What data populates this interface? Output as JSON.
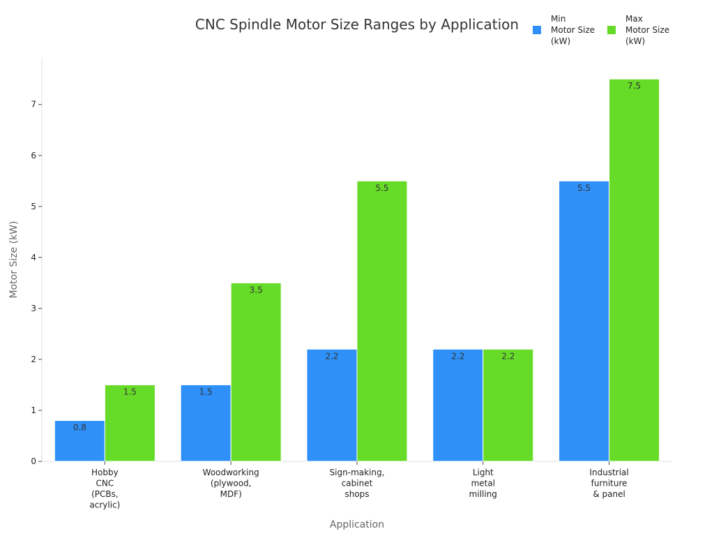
{
  "chart_data": {
    "type": "bar",
    "title": "CNC Spindle Motor Size Ranges by Application",
    "xlabel": "Application",
    "ylabel": "Motor Size (kW)",
    "categories": [
      [
        "Hobby",
        "CNC",
        "(PCBs,",
        "acrylic)"
      ],
      [
        "Woodworking",
        "(plywood,",
        "MDF)"
      ],
      [
        "Sign-making,",
        "cabinet",
        "shops"
      ],
      [
        "Light",
        "metal",
        "milling"
      ],
      [
        "Industrial",
        "furniture",
        "& panel"
      ]
    ],
    "series": [
      {
        "name": [
          "Min",
          "Motor Size",
          "(kW)"
        ],
        "values": [
          0.8,
          1.5,
          2.2,
          2.2,
          5.5
        ],
        "color": "#2e90f8"
      },
      {
        "name": [
          "Max",
          "Motor Size",
          "(kW)"
        ],
        "values": [
          1.5,
          3.5,
          5.5,
          2.2,
          7.5
        ],
        "color": "#66db28"
      }
    ],
    "ylim": [
      0,
      7.9
    ],
    "yticks": [
      0,
      1,
      2,
      3,
      4,
      5,
      6,
      7
    ],
    "grid": false,
    "legend_position": "top-right"
  }
}
